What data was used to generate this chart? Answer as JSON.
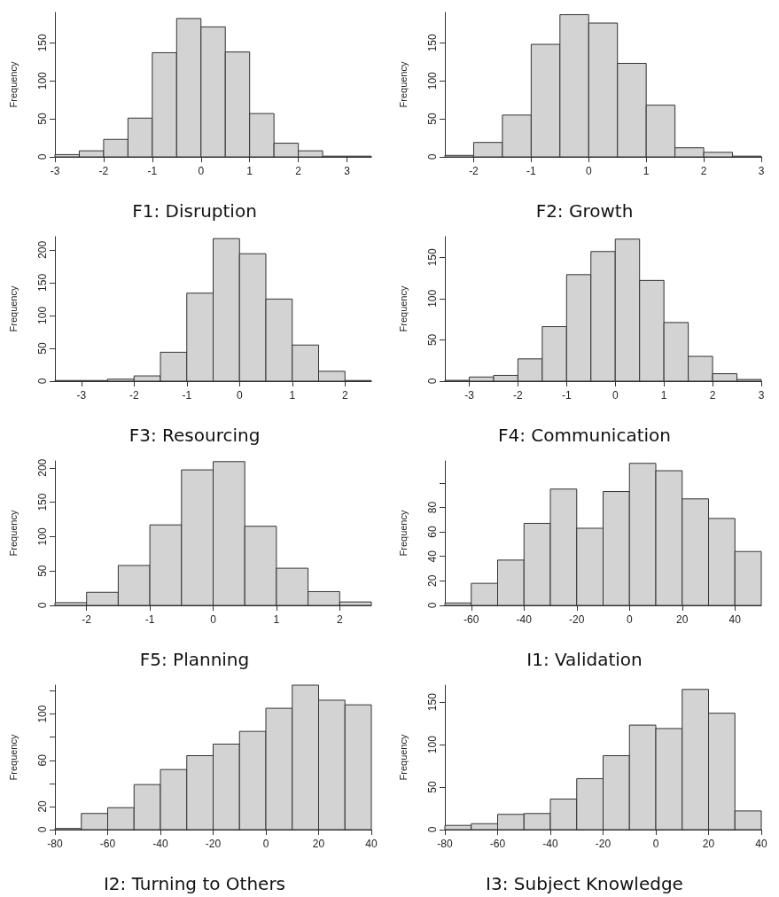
{
  "chart_data": [
    {
      "type": "histogram",
      "title": "F1: Disruption",
      "ylabel": "Frequency",
      "bins": [
        -3,
        -2.5,
        -2,
        -1.5,
        -1,
        -0.5,
        0,
        0.5,
        1,
        1.5,
        2,
        2.5,
        3,
        3.5
      ],
      "values": [
        3,
        8,
        23,
        51,
        137,
        182,
        171,
        138,
        57,
        18,
        8,
        1,
        1
      ],
      "color": "#d3d3d3",
      "xlim": [
        -3,
        3.5
      ],
      "xticks": [
        -3,
        -2,
        -1,
        0,
        1,
        2,
        3
      ],
      "ylim": [
        0,
        190
      ],
      "yticks": [
        0,
        50,
        100,
        150
      ],
      "grid": false
    },
    {
      "type": "histogram",
      "title": "F2: Growth",
      "ylabel": "Frequency",
      "bins": [
        -2.5,
        -2,
        -1.5,
        -1,
        -0.5,
        0,
        0.5,
        1,
        1.5,
        2,
        2.5,
        3
      ],
      "values": [
        2,
        19,
        55,
        148,
        187,
        176,
        123,
        68,
        12,
        6,
        1
      ],
      "color": "#d3d3d3",
      "xlim": [
        -2.5,
        3
      ],
      "xticks": [
        -2,
        -1,
        0,
        1,
        2,
        3
      ],
      "ylim": [
        0,
        190
      ],
      "yticks": [
        0,
        50,
        100,
        150
      ],
      "grid": false
    },
    {
      "type": "histogram",
      "title": "F3: Resourcing",
      "ylabel": "Frequency",
      "bins": [
        -3.5,
        -3,
        -2.5,
        -2,
        -1.5,
        -1,
        -0.5,
        0,
        0.5,
        1,
        1.5,
        2,
        2.5
      ],
      "values": [
        1,
        1,
        3,
        8,
        44,
        134,
        217,
        194,
        125,
        55,
        15,
        1
      ],
      "color": "#d3d3d3",
      "xlim": [
        -3.5,
        2.5
      ],
      "xticks": [
        -3,
        -2,
        -1,
        0,
        1,
        2
      ],
      "ylim": [
        0,
        220
      ],
      "yticks": [
        0,
        50,
        100,
        150,
        200
      ],
      "grid": false
    },
    {
      "type": "histogram",
      "title": "F4: Communication",
      "ylabel": "Frequency",
      "bins": [
        -3.5,
        -3,
        -2.5,
        -2,
        -1.5,
        -1,
        -0.5,
        0,
        0.5,
        1,
        1.5,
        2,
        2.5,
        3
      ],
      "values": [
        1,
        5,
        7,
        27,
        66,
        129,
        157,
        172,
        122,
        71,
        30,
        9,
        2
      ],
      "color": "#d3d3d3",
      "xlim": [
        -3.5,
        3
      ],
      "xticks": [
        -3,
        -2,
        -1,
        0,
        1,
        2,
        3
      ],
      "ylim": [
        0,
        175
      ],
      "yticks": [
        0,
        50,
        100,
        150
      ],
      "grid": false
    },
    {
      "type": "histogram",
      "title": "F5: Planning",
      "ylabel": "Frequency",
      "bins": [
        -2.5,
        -2,
        -1.5,
        -1,
        -0.5,
        0,
        0.5,
        1,
        1.5,
        2,
        2.5
      ],
      "values": [
        4,
        19,
        58,
        117,
        197,
        209,
        115,
        54,
        20,
        5
      ],
      "color": "#d3d3d3",
      "xlim": [
        -2.5,
        2.5
      ],
      "xticks": [
        -2,
        -1,
        0,
        1,
        2
      ],
      "ylim": [
        0,
        210
      ],
      "yticks": [
        0,
        50,
        100,
        150,
        200
      ],
      "grid": false
    },
    {
      "type": "histogram",
      "title": "I1: Validation",
      "ylabel": "Frequency",
      "bins": [
        -70,
        -60,
        -50,
        -40,
        -30,
        -20,
        -10,
        0,
        10,
        20,
        30,
        40,
        50
      ],
      "values": [
        2,
        18,
        37,
        67,
        95,
        63,
        93,
        116,
        110,
        87,
        71,
        44
      ],
      "color": "#d3d3d3",
      "xlim": [
        -70,
        50
      ],
      "xticks": [
        -60,
        -40,
        -20,
        0,
        20,
        40
      ],
      "ylim": [
        0,
        118
      ],
      "yticks": [
        0,
        20,
        40,
        60,
        80,
        {
          "value": 100,
          "label": null
        }
      ],
      "grid": false
    },
    {
      "type": "histogram",
      "title": "I2: Turning to Others",
      "ylabel": "Frequency",
      "bins": [
        -80,
        -70,
        -60,
        -50,
        -40,
        -30,
        -20,
        -10,
        0,
        10,
        20,
        30,
        40
      ],
      "values": [
        1,
        14,
        19,
        39,
        52,
        64,
        74,
        85,
        105,
        125,
        112,
        108
      ],
      "color": "#d3d3d3",
      "xlim": [
        -80,
        40
      ],
      "xticks": [
        -80,
        -60,
        -40,
        -20,
        0,
        20,
        40
      ],
      "ylim": [
        0,
        125
      ],
      "yticks": [
        0,
        20,
        {
          "value": 40,
          "label": null
        },
        60,
        {
          "value": 80,
          "label": null
        },
        100,
        {
          "value": 120,
          "label": null
        }
      ],
      "grid": false
    },
    {
      "type": "histogram",
      "title": "I3: Subject Knowledge",
      "ylabel": "Frequency",
      "bins": [
        -80,
        -70,
        -60,
        -50,
        -40,
        -30,
        -20,
        -10,
        0,
        10,
        20,
        30,
        40
      ],
      "values": [
        5,
        7,
        18,
        19,
        36,
        60,
        87,
        123,
        119,
        165,
        137,
        22
      ],
      "color": "#d3d3d3",
      "xlim": [
        -80,
        40
      ],
      "xticks": [
        -80,
        -60,
        -40,
        -20,
        0,
        20,
        40
      ],
      "ylim": [
        0,
        170
      ],
      "yticks": [
        0,
        50,
        100,
        150
      ],
      "grid": false
    }
  ]
}
